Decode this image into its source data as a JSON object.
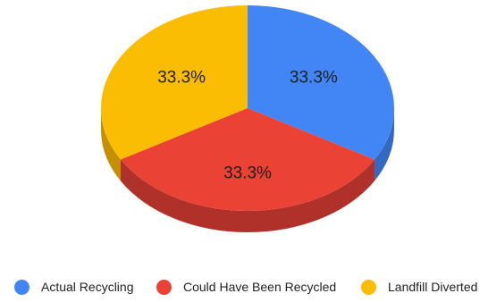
{
  "chart_data": {
    "type": "pie",
    "style": "3d",
    "series": [
      {
        "name": "Actual Recycling",
        "value": 33.3,
        "label": "33.3%",
        "color": "#4285f4",
        "side_color": "#3468c2"
      },
      {
        "name": "Could Have Been Recycled",
        "value": 33.3,
        "label": "33.3%",
        "color": "#ea4335",
        "side_color": "#b0302a"
      },
      {
        "name": "Landfill Diverted",
        "value": 33.3,
        "label": "33.3%",
        "color": "#fbbc04",
        "side_color": "#c49000"
      }
    ],
    "legend_position": "bottom"
  }
}
